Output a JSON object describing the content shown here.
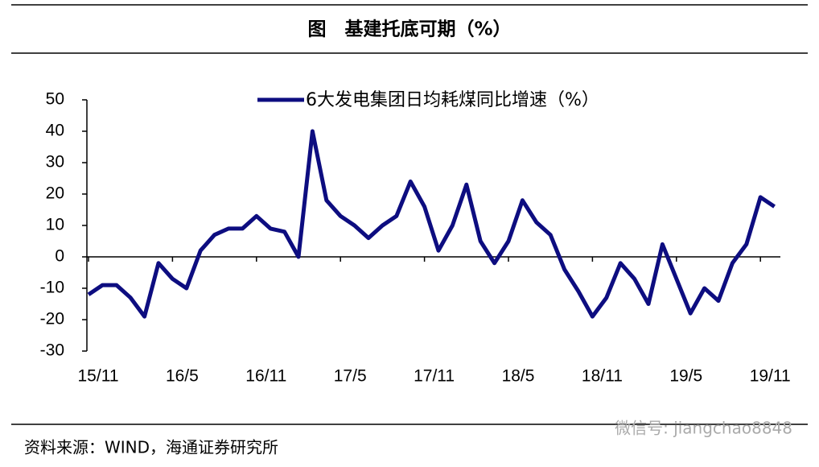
{
  "chart_data": {
    "type": "line",
    "title": "图　基建托底可期（%）",
    "categories": [
      "15/11",
      null,
      null,
      null,
      null,
      null,
      "16/5",
      null,
      null,
      null,
      null,
      null,
      "16/11",
      null,
      null,
      null,
      null,
      null,
      "17/5",
      null,
      null,
      null,
      null,
      null,
      "17/11",
      null,
      null,
      null,
      null,
      null,
      "18/5",
      null,
      null,
      null,
      null,
      null,
      "18/11",
      null,
      null,
      null,
      null,
      null,
      "19/5",
      null,
      null,
      null,
      null,
      null,
      "19/11",
      null
    ],
    "series": [
      {
        "name": "6大发电集团日均耗煤同比增速（%）",
        "color": "#0d0d80",
        "values": [
          -12,
          -9,
          -9,
          -13,
          -19,
          -2,
          -7,
          -10,
          2,
          7,
          9,
          9,
          13,
          9,
          8,
          0,
          40,
          18,
          13,
          10,
          6,
          10,
          13,
          24,
          16,
          2,
          10,
          23,
          5,
          -2,
          5,
          18,
          11,
          7,
          -4,
          -11,
          -19,
          -13,
          -2,
          -7,
          -15,
          4,
          -7,
          -18,
          -10,
          -14,
          -2,
          4,
          19,
          16
        ]
      }
    ],
    "ylim": [
      -30,
      50
    ],
    "yticks": [
      -30,
      -20,
      -10,
      0,
      10,
      20,
      30,
      40,
      50
    ],
    "grid": false,
    "source": "资料来源：WIND，海通证券研究所",
    "watermark": "微信号: jiangchao8848"
  }
}
